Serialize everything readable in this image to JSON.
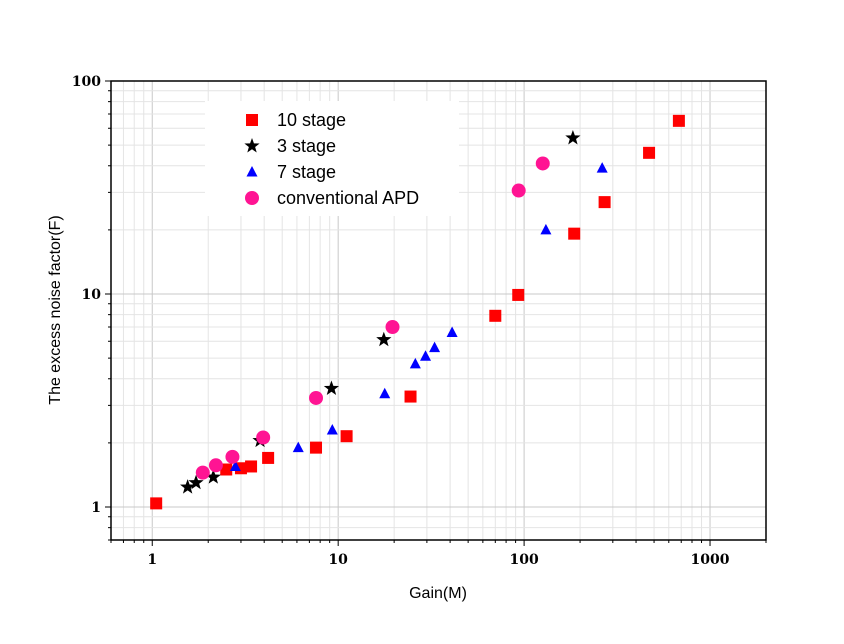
{
  "chart_data": {
    "type": "scatter",
    "title": "",
    "xlabel": "Gain(M)",
    "ylabel": "The excess noise factor(F)",
    "x_scale": "log",
    "y_scale": "log",
    "xlim": [
      0.6,
      2000
    ],
    "ylim": [
      0.7,
      100
    ],
    "x_tick_labels": [
      "1",
      "10",
      "100",
      "1000"
    ],
    "y_tick_labels": [
      "1",
      "10",
      "100"
    ],
    "grid": true,
    "legend_position": "top-left",
    "series": [
      {
        "name": "10 stage",
        "marker": "square",
        "color": "#ff0000",
        "points": [
          [
            1.05,
            1.04
          ],
          [
            2.5,
            1.5
          ],
          [
            3.0,
            1.52
          ],
          [
            3.4,
            1.55
          ],
          [
            4.2,
            1.7
          ],
          [
            7.6,
            1.9
          ],
          [
            11.1,
            2.15
          ],
          [
            24.5,
            3.3
          ],
          [
            70,
            7.9
          ],
          [
            93,
            9.9
          ],
          [
            186,
            19.2
          ],
          [
            271,
            27
          ],
          [
            470,
            46
          ],
          [
            680,
            65
          ]
        ]
      },
      {
        "name": "3 stage",
        "marker": "star",
        "color": "#000000",
        "points": [
          [
            1.55,
            1.24
          ],
          [
            1.72,
            1.3
          ],
          [
            2.13,
            1.38
          ],
          [
            3.8,
            2.05
          ],
          [
            9.2,
            3.6
          ],
          [
            17.6,
            6.1
          ],
          [
            183,
            54
          ]
        ]
      },
      {
        "name": "7 stage",
        "marker": "triangle",
        "color": "#0000ff",
        "points": [
          [
            2.8,
            1.55
          ],
          [
            6.1,
            1.9
          ],
          [
            9.3,
            2.3
          ],
          [
            17.8,
            3.4
          ],
          [
            26,
            4.7
          ],
          [
            29.5,
            5.1
          ],
          [
            33,
            5.6
          ],
          [
            41,
            6.6
          ],
          [
            131,
            20
          ],
          [
            263,
            39
          ]
        ]
      },
      {
        "name": "conventional APD",
        "marker": "circle",
        "color": "#ff1493",
        "points": [
          [
            1.87,
            1.45
          ],
          [
            2.2,
            1.57
          ],
          [
            2.7,
            1.72
          ],
          [
            3.95,
            2.12
          ],
          [
            7.6,
            3.25
          ],
          [
            19.6,
            7.0
          ],
          [
            93.5,
            30.6
          ],
          [
            126,
            41
          ]
        ]
      }
    ]
  }
}
